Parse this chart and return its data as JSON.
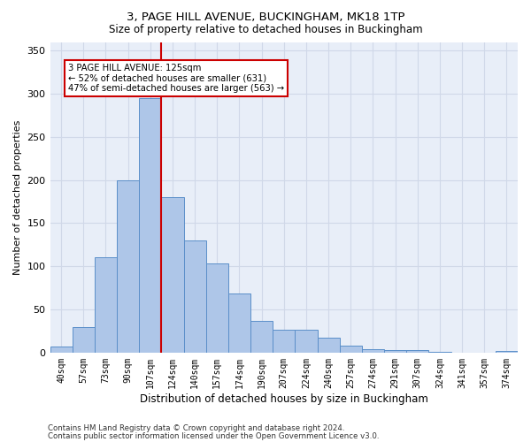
{
  "title1": "3, PAGE HILL AVENUE, BUCKINGHAM, MK18 1TP",
  "title2": "Size of property relative to detached houses in Buckingham",
  "xlabel": "Distribution of detached houses by size in Buckingham",
  "ylabel": "Number of detached properties",
  "bar_labels": [
    "40sqm",
    "57sqm",
    "73sqm",
    "90sqm",
    "107sqm",
    "124sqm",
    "140sqm",
    "157sqm",
    "174sqm",
    "190sqm",
    "207sqm",
    "224sqm",
    "240sqm",
    "257sqm",
    "274sqm",
    "291sqm",
    "307sqm",
    "324sqm",
    "341sqm",
    "357sqm",
    "374sqm"
  ],
  "bar_heights": [
    7,
    30,
    110,
    200,
    295,
    180,
    130,
    103,
    68,
    37,
    26,
    26,
    17,
    8,
    4,
    3,
    3,
    1,
    0,
    0,
    2
  ],
  "bar_color": "#aec6e8",
  "bar_edge_color": "#5b8fc9",
  "vline_color": "#cc0000",
  "annotation_line1": "3 PAGE HILL AVENUE: 125sqm",
  "annotation_line2": "← 52% of detached houses are smaller (631)",
  "annotation_line3": "47% of semi-detached houses are larger (563) →",
  "annotation_box_color": "#ffffff",
  "annotation_box_edge_color": "#cc0000",
  "ylim": [
    0,
    360
  ],
  "yticks": [
    0,
    50,
    100,
    150,
    200,
    250,
    300,
    350
  ],
  "grid_color": "#d0d8e8",
  "background_color": "#e8eef8",
  "footer1": "Contains HM Land Registry data © Crown copyright and database right 2024.",
  "footer2": "Contains public sector information licensed under the Open Government Licence v3.0."
}
